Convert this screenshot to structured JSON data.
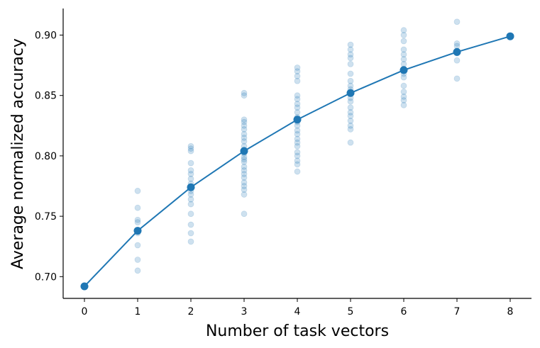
{
  "chart_data": {
    "type": "scatter",
    "title": "",
    "xlabel": "Number of task vectors",
    "ylabel": "Average normalized accuracy",
    "xlim": [
      -0.4,
      8.4
    ],
    "ylim": [
      0.682,
      0.922
    ],
    "xticks": [
      0,
      1,
      2,
      3,
      4,
      5,
      6,
      7,
      8
    ],
    "yticks": [
      0.7,
      0.75,
      0.8,
      0.85,
      0.9
    ],
    "ytick_labels": [
      "0.70",
      "0.75",
      "0.80",
      "0.85",
      "0.90"
    ],
    "grid": false,
    "colors": {
      "series": "#1f77b4",
      "axis": "#000000"
    },
    "individual_points": [
      {
        "x": 1,
        "values": [
          0.771,
          0.757,
          0.747,
          0.745,
          0.738,
          0.736,
          0.726,
          0.714,
          0.705
        ]
      },
      {
        "x": 2,
        "values": [
          0.808,
          0.806,
          0.804,
          0.794,
          0.788,
          0.785,
          0.781,
          0.777,
          0.771,
          0.768,
          0.764,
          0.76,
          0.752,
          0.743,
          0.736,
          0.729
        ]
      },
      {
        "x": 3,
        "values": [
          0.852,
          0.85,
          0.83,
          0.828,
          0.825,
          0.822,
          0.818,
          0.815,
          0.812,
          0.808,
          0.805,
          0.802,
          0.799,
          0.797,
          0.795,
          0.791,
          0.788,
          0.785,
          0.782,
          0.778,
          0.775,
          0.772,
          0.768,
          0.752
        ]
      },
      {
        "x": 4,
        "values": [
          0.873,
          0.87,
          0.866,
          0.862,
          0.85,
          0.847,
          0.843,
          0.84,
          0.836,
          0.832,
          0.828,
          0.825,
          0.821,
          0.818,
          0.814,
          0.811,
          0.808,
          0.803,
          0.8,
          0.796,
          0.793,
          0.787
        ]
      },
      {
        "x": 5,
        "values": [
          0.892,
          0.888,
          0.884,
          0.881,
          0.876,
          0.868,
          0.862,
          0.858,
          0.855,
          0.852,
          0.848,
          0.845,
          0.84,
          0.836,
          0.833,
          0.829,
          0.825,
          0.822,
          0.811
        ]
      },
      {
        "x": 6,
        "values": [
          0.904,
          0.9,
          0.895,
          0.888,
          0.884,
          0.88,
          0.876,
          0.872,
          0.868,
          0.865,
          0.858,
          0.853,
          0.849,
          0.846,
          0.842
        ]
      },
      {
        "x": 7,
        "values": [
          0.911,
          0.893,
          0.891,
          0.887,
          0.885,
          0.879,
          0.864
        ]
      }
    ],
    "series": [
      {
        "x": [
          0,
          1,
          2,
          3,
          4,
          5,
          6,
          7,
          8
        ],
        "values": [
          0.692,
          0.738,
          0.774,
          0.804,
          0.83,
          0.852,
          0.871,
          0.886,
          0.899
        ]
      }
    ]
  }
}
